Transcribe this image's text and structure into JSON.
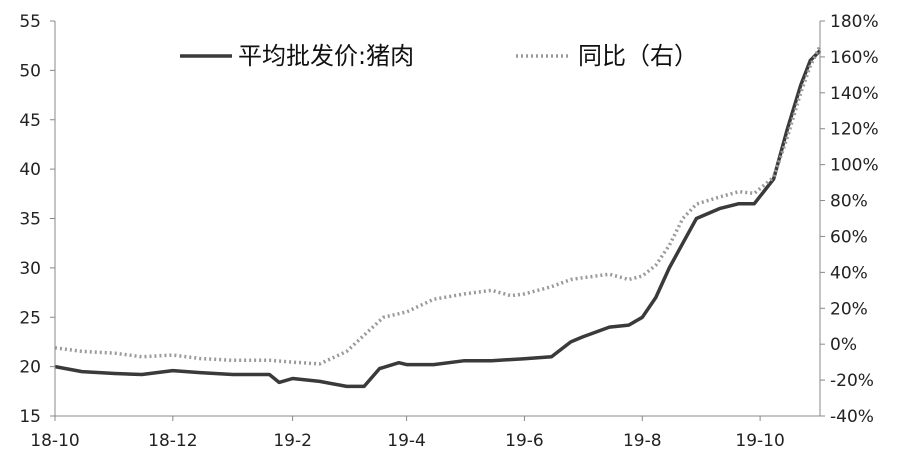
{
  "chart_data": {
    "type": "line",
    "title": "",
    "xlabel": "",
    "ylabel_left": "",
    "ylabel_right": "",
    "grid": false,
    "legend_position": "top",
    "x_ticks": [
      "18-10",
      "18-12",
      "19-2",
      "19-4",
      "19-6",
      "19-8",
      "19-10"
    ],
    "y_left": {
      "min": 15,
      "max": 55,
      "ticks": [
        "15",
        "20",
        "25",
        "30",
        "35",
        "40",
        "45",
        "50",
        "55"
      ]
    },
    "y_right": {
      "min": -40,
      "max": 180,
      "ticks": [
        "-40%",
        "-20%",
        "0%",
        "20%",
        "40%",
        "60%",
        "80%",
        "100%",
        "120%",
        "140%",
        "160%",
        "180%"
      ]
    },
    "series": [
      {
        "name": "平均批发价:猪肉",
        "axis": "left",
        "style": "solid",
        "color": "#3a3a3a",
        "points": [
          [
            "2018-10-01",
            20.0
          ],
          [
            "2018-10-15",
            19.5
          ],
          [
            "2018-11-01",
            19.3
          ],
          [
            "2018-11-15",
            19.2
          ],
          [
            "2018-12-01",
            19.6
          ],
          [
            "2018-12-15",
            19.4
          ],
          [
            "2019-01-01",
            19.2
          ],
          [
            "2019-01-20",
            19.2
          ],
          [
            "2019-01-25",
            18.4
          ],
          [
            "2019-02-01",
            18.8
          ],
          [
            "2019-02-15",
            18.5
          ],
          [
            "2019-03-01",
            18.0
          ],
          [
            "2019-03-10",
            18.0
          ],
          [
            "2019-03-18",
            19.8
          ],
          [
            "2019-03-28",
            20.4
          ],
          [
            "2019-04-01",
            20.2
          ],
          [
            "2019-04-15",
            20.2
          ],
          [
            "2019-05-01",
            20.6
          ],
          [
            "2019-05-15",
            20.6
          ],
          [
            "2019-06-01",
            20.8
          ],
          [
            "2019-06-15",
            21.0
          ],
          [
            "2019-06-25",
            22.5
          ],
          [
            "2019-07-01",
            23.0
          ],
          [
            "2019-07-15",
            24.0
          ],
          [
            "2019-07-25",
            24.2
          ],
          [
            "2019-08-01",
            25.0
          ],
          [
            "2019-08-08",
            27.0
          ],
          [
            "2019-08-15",
            30.0
          ],
          [
            "2019-08-22",
            32.5
          ],
          [
            "2019-08-29",
            35.0
          ],
          [
            "2019-09-10",
            36.0
          ],
          [
            "2019-09-20",
            36.5
          ],
          [
            "2019-09-28",
            36.5
          ],
          [
            "2019-10-08",
            39.0
          ],
          [
            "2019-10-15",
            44.0
          ],
          [
            "2019-10-22",
            48.5
          ],
          [
            "2019-10-27",
            51.0
          ],
          [
            "2019-11-01",
            52.0
          ]
        ]
      },
      {
        "name": "同比（右）",
        "axis": "right",
        "style": "dotted",
        "color": "#9a9a9a",
        "points": [
          [
            "2018-10-01",
            -2
          ],
          [
            "2018-10-15",
            -4
          ],
          [
            "2018-11-01",
            -5
          ],
          [
            "2018-11-15",
            -7
          ],
          [
            "2018-12-01",
            -6
          ],
          [
            "2018-12-15",
            -8
          ],
          [
            "2019-01-01",
            -9
          ],
          [
            "2019-01-20",
            -9
          ],
          [
            "2019-02-01",
            -10
          ],
          [
            "2019-02-15",
            -11
          ],
          [
            "2019-03-01",
            -4
          ],
          [
            "2019-03-10",
            5
          ],
          [
            "2019-03-20",
            15
          ],
          [
            "2019-04-01",
            18
          ],
          [
            "2019-04-15",
            25
          ],
          [
            "2019-05-01",
            28
          ],
          [
            "2019-05-15",
            30
          ],
          [
            "2019-05-25",
            27
          ],
          [
            "2019-06-01",
            28
          ],
          [
            "2019-06-15",
            32
          ],
          [
            "2019-06-25",
            36
          ],
          [
            "2019-07-01",
            37
          ],
          [
            "2019-07-15",
            39
          ],
          [
            "2019-07-25",
            36
          ],
          [
            "2019-08-01",
            38
          ],
          [
            "2019-08-08",
            44
          ],
          [
            "2019-08-15",
            55
          ],
          [
            "2019-08-22",
            70
          ],
          [
            "2019-08-29",
            78
          ],
          [
            "2019-09-10",
            82
          ],
          [
            "2019-09-20",
            85
          ],
          [
            "2019-09-28",
            84
          ],
          [
            "2019-10-08",
            93
          ],
          [
            "2019-10-15",
            115
          ],
          [
            "2019-10-22",
            140
          ],
          [
            "2019-10-27",
            155
          ],
          [
            "2019-11-01",
            166
          ]
        ]
      }
    ]
  }
}
